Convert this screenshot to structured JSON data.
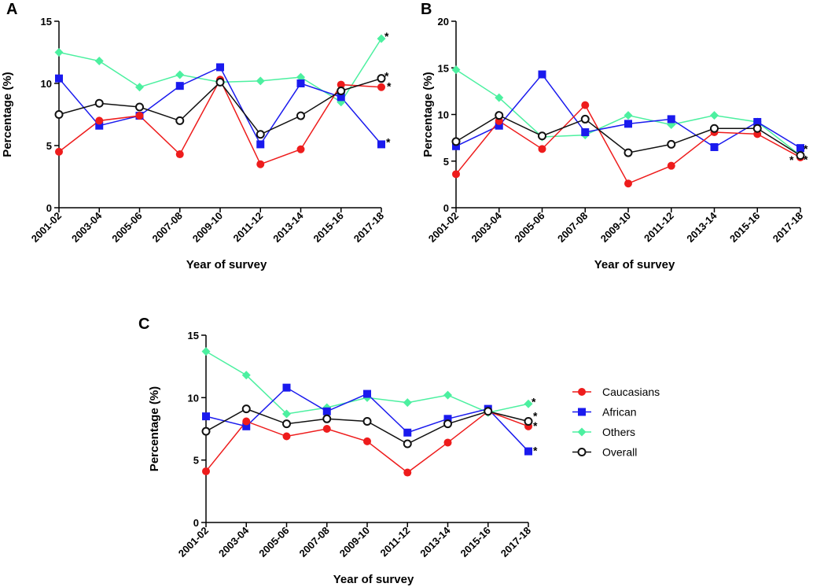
{
  "chart_data": [
    {
      "panel": "A",
      "type": "line",
      "xlabel": "Year of survey",
      "ylabel": "Percentage (%)",
      "categories": [
        "2001-02",
        "2003-04",
        "2005-06",
        "2007-08",
        "2009-10",
        "2011-12",
        "2013-14",
        "2015-16",
        "2017-18"
      ],
      "ylim": [
        0,
        15
      ],
      "yticks": [
        0,
        5,
        10,
        15
      ],
      "yticklabels": [
        "0",
        "5",
        "10",
        "15"
      ],
      "series": [
        {
          "name": "Others",
          "color": "#4cf0a0",
          "marker": "diamond",
          "values": [
            12.5,
            11.8,
            9.7,
            10.7,
            10.1,
            10.2,
            10.5,
            8.5,
            13.6
          ]
        },
        {
          "name": "African",
          "color": "#1a1aee",
          "marker": "square",
          "values": [
            10.4,
            6.6,
            7.4,
            9.8,
            11.3,
            5.1,
            10.0,
            8.9,
            5.1
          ]
        },
        {
          "name": "Caucasians",
          "color": "#ee1c1c",
          "marker": "circle",
          "values": [
            4.5,
            7.0,
            7.4,
            4.3,
            10.3,
            3.5,
            4.7,
            9.9,
            9.7
          ]
        },
        {
          "name": "Overall",
          "color": "#111111",
          "marker": "open-circle",
          "values": [
            7.5,
            8.4,
            8.1,
            7.0,
            10.1,
            5.9,
            7.4,
            9.4,
            10.4
          ]
        }
      ],
      "annotations": [
        {
          "text": "*",
          "series": "Others",
          "index": 8
        },
        {
          "text": "*",
          "series": "Overall",
          "index": 8
        },
        {
          "text": "*",
          "series": "Caucasians",
          "index": 8
        },
        {
          "text": "*",
          "series": "African",
          "index": 8
        }
      ]
    },
    {
      "panel": "B",
      "type": "line",
      "xlabel": "Year of survey",
      "ylabel": "Percentage (%)",
      "categories": [
        "2001-02",
        "2003-04",
        "2005-06",
        "2007-08",
        "2009-10",
        "2011-12",
        "2013-14",
        "2015-16",
        "2017-18"
      ],
      "ylim": [
        0,
        20
      ],
      "yticks": [
        0,
        5,
        10,
        15,
        20
      ],
      "yticklabels": [
        "0",
        "5",
        "10",
        "15",
        "20"
      ],
      "series": [
        {
          "name": "Others",
          "color": "#4cf0a0",
          "marker": "diamond",
          "values": [
            14.8,
            11.8,
            7.6,
            7.8,
            9.9,
            8.9,
            9.9,
            9.2,
            5.6
          ]
        },
        {
          "name": "African",
          "color": "#1a1aee",
          "marker": "square",
          "values": [
            6.6,
            8.8,
            14.3,
            8.1,
            9.0,
            9.5,
            6.5,
            9.2,
            6.4
          ]
        },
        {
          "name": "Caucasians",
          "color": "#ee1c1c",
          "marker": "circle",
          "values": [
            3.6,
            9.3,
            6.3,
            11.0,
            2.6,
            4.5,
            8.1,
            7.9,
            5.4
          ]
        },
        {
          "name": "Overall",
          "color": "#111111",
          "marker": "open-circle",
          "values": [
            7.1,
            9.9,
            7.7,
            9.5,
            5.9,
            6.8,
            8.5,
            8.5,
            5.6
          ]
        }
      ],
      "annotations": [
        {
          "text": "*",
          "series": "Caucasians",
          "index": 8
        },
        {
          "text": "*",
          "series": "Overall",
          "index": 8
        },
        {
          "text": "*",
          "series": "African",
          "index": 8
        }
      ]
    },
    {
      "panel": "C",
      "type": "line",
      "xlabel": "Year of survey",
      "ylabel": "Percentage (%)",
      "categories": [
        "2001-02",
        "2003-04",
        "2005-06",
        "2007-08",
        "2009-10",
        "2011-12",
        "2013-14",
        "2015-16",
        "2017-18"
      ],
      "ylim": [
        0,
        15
      ],
      "yticks": [
        0,
        5,
        10,
        15
      ],
      "yticklabels": [
        "0",
        "5",
        "10",
        "15"
      ],
      "series": [
        {
          "name": "Others",
          "color": "#4cf0a0",
          "marker": "diamond",
          "values": [
            13.7,
            11.8,
            8.7,
            9.2,
            10.0,
            9.6,
            10.2,
            8.8,
            9.5
          ]
        },
        {
          "name": "African",
          "color": "#1a1aee",
          "marker": "square",
          "values": [
            8.5,
            7.7,
            10.8,
            8.9,
            10.3,
            7.2,
            8.3,
            9.1,
            5.7
          ]
        },
        {
          "name": "Caucasians",
          "color": "#ee1c1c",
          "marker": "circle",
          "values": [
            4.1,
            8.1,
            6.9,
            7.5,
            6.5,
            4.0,
            6.4,
            8.9,
            7.7
          ]
        },
        {
          "name": "Overall",
          "color": "#111111",
          "marker": "open-circle",
          "values": [
            7.3,
            9.1,
            7.9,
            8.3,
            8.1,
            6.3,
            7.9,
            8.9,
            8.1
          ]
        }
      ],
      "annotations": [
        {
          "text": "*",
          "series": "Others",
          "index": 8
        },
        {
          "text": "*",
          "series": "Overall",
          "index": 8
        },
        {
          "text": "*",
          "series": "Caucasians",
          "index": 8
        },
        {
          "text": "*",
          "series": "African",
          "index": 8
        }
      ]
    }
  ],
  "legend": {
    "placement": "right of panel C",
    "items": [
      {
        "label": "Caucasians",
        "color": "#ee1c1c",
        "marker": "circle"
      },
      {
        "label": "African",
        "color": "#1a1aee",
        "marker": "square"
      },
      {
        "label": "Others",
        "color": "#4cf0a0",
        "marker": "diamond"
      },
      {
        "label": "Overall",
        "color": "#111111",
        "marker": "open-circle"
      }
    ]
  }
}
